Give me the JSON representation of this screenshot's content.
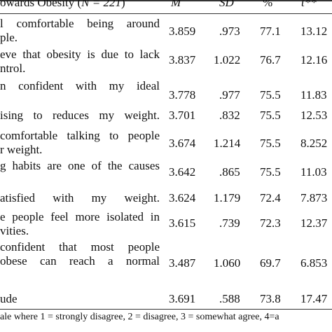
{
  "header": {
    "title_text": "owards Obesity (",
    "n_label": "N = 221",
    "title_close": ")",
    "col_m": "M",
    "col_sd": "SD",
    "col_pct": "%",
    "col_t": "t**"
  },
  "rows": [
    {
      "lines": [
        "l comfortable being around",
        "ple."
      ],
      "m": "3.859",
      "sd": ".973",
      "pct": "77.1",
      "t": "13.12"
    },
    {
      "lines": [
        "eve that obesity is due to lack",
        "ntrol."
      ],
      "m": "3.837",
      "sd": "1.022",
      "pct": "76.7",
      "t": "12.16"
    },
    {
      "lines": [
        "n confident with my ideal",
        ""
      ],
      "m": "3.778",
      "sd": ".977",
      "pct": "75.5",
      "t": "11.83"
    },
    {
      "lines": [
        "ising to reduces my weight."
      ],
      "m": "3.701",
      "sd": ".832",
      "pct": "75.5",
      "t": "12.53"
    },
    {
      "lines": [
        "comfortable talking to people",
        "r weight."
      ],
      "m": "3.674",
      "sd": "1.214",
      "pct": "75.5",
      "t": "8.252"
    },
    {
      "lines": [
        "g habits are one of the causes",
        ""
      ],
      "m": "3.642",
      "sd": ".865",
      "pct": "75.5",
      "t": "11.03"
    },
    {
      "lines": [
        "atisfied with my weight."
      ],
      "m": "3.624",
      "sd": "1.179",
      "pct": "72.4",
      "t": "7.873"
    },
    {
      "lines": [
        "e people feel more isolated in",
        "vities."
      ],
      "m": "3.615",
      "sd": ".739",
      "pct": "72.3",
      "t": "12.37"
    },
    {
      "lines": [
        "confident that most people",
        "obese can reach a normal",
        ""
      ],
      "m": "3.487",
      "sd": "1.060",
      "pct": "69.7",
      "t": "6.853"
    },
    {
      "lines": [
        "ude"
      ],
      "m": "3.691",
      "sd": ".588",
      "pct": "73.8",
      "t": "17.47"
    }
  ],
  "footer": "ale where 1 = strongly disagree, 2 = disagree, 3 = somewhat agree, 4=a"
}
